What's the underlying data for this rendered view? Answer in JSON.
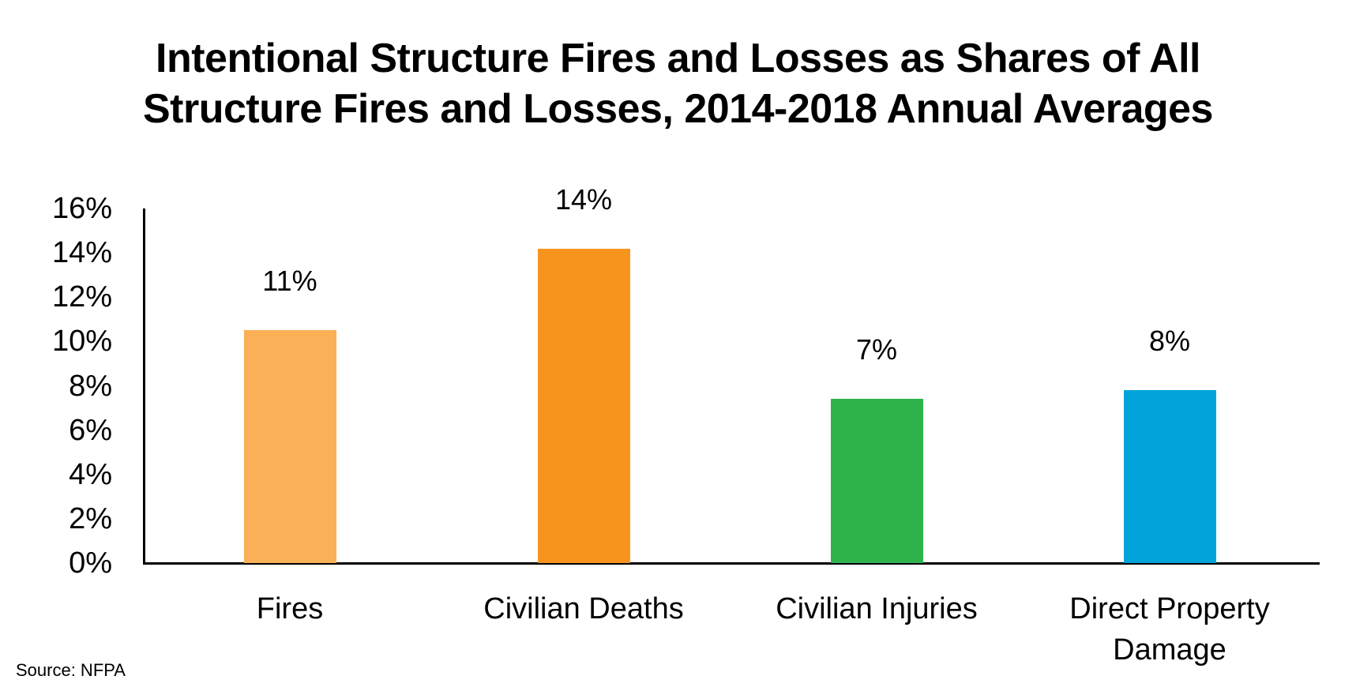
{
  "chart_data": {
    "type": "bar",
    "title": "Intentional Structure Fires and Losses as Shares of All Structure Fires and Losses, 2014-2018 Annual Averages",
    "title_lines": [
      "Intentional Structure Fires and Losses as Shares of All",
      "Structure Fires and Losses, 2014-2018 Annual Averages"
    ],
    "categories": [
      "Fires",
      "Civilian Deaths",
      "Civilian Injuries",
      "Direct Property Damage"
    ],
    "category_lines": [
      [
        "Fires"
      ],
      [
        "Civilian Deaths"
      ],
      [
        "Civilian Injuries"
      ],
      [
        "Direct Property",
        "Damage"
      ]
    ],
    "values": [
      10.5,
      14.2,
      7.4,
      7.8
    ],
    "data_labels": [
      "11%",
      "14%",
      "7%",
      "8%"
    ],
    "colors": [
      "#F9B057",
      "#F7941E",
      "#2DB34A",
      "#00A3DA"
    ],
    "xlabel": "",
    "ylabel": "",
    "ylim": [
      0,
      16
    ],
    "yticks": [
      0,
      2,
      4,
      6,
      8,
      10,
      12,
      14,
      16
    ],
    "ytick_labels": [
      "0%",
      "2%",
      "4%",
      "6%",
      "8%",
      "10%",
      "12%",
      "14%",
      "16%"
    ],
    "grid": false,
    "legend": null,
    "source": "Source: NFPA"
  },
  "source_note": "Source: NFPA"
}
